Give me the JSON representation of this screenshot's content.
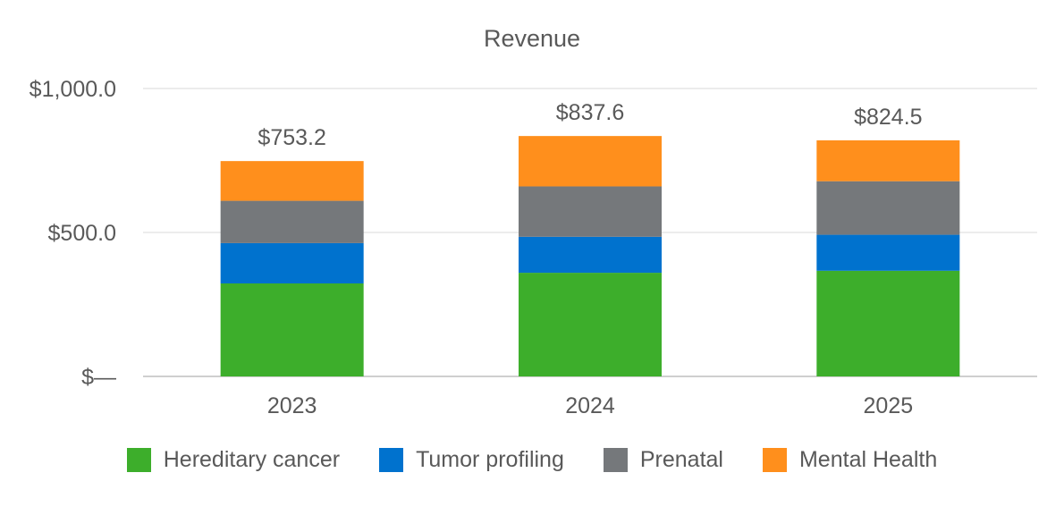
{
  "chart_data": {
    "type": "bar",
    "stacked": true,
    "title": "Revenue",
    "xlabel": "",
    "ylabel": "",
    "categories": [
      "2023",
      "2024",
      "2025"
    ],
    "ylim": [
      0,
      1000
    ],
    "y_ticks": [
      {
        "value": 0,
        "label": "$—"
      },
      {
        "value": 500,
        "label": "$500.0"
      },
      {
        "value": 1000,
        "label": "$1,000.0"
      }
    ],
    "series": [
      {
        "name": "Hereditary cancer",
        "color": "#3dae2b",
        "values": [
          323,
          360,
          367
        ]
      },
      {
        "name": "Tumor profiling",
        "color": "#0072ce",
        "values": [
          140,
          125,
          125
        ]
      },
      {
        "name": "Prenatal",
        "color": "#75787b",
        "values": [
          147,
          175,
          186
        ]
      },
      {
        "name": "Mental Health",
        "color": "#ff8f1c",
        "values": [
          138,
          175,
          142
        ]
      }
    ],
    "totals": [
      {
        "value": 753.2,
        "label": "$753.2"
      },
      {
        "value": 837.6,
        "label": "$837.6"
      },
      {
        "value": 824.5,
        "label": "$824.5"
      }
    ],
    "grid": true,
    "legend_position": "bottom"
  }
}
